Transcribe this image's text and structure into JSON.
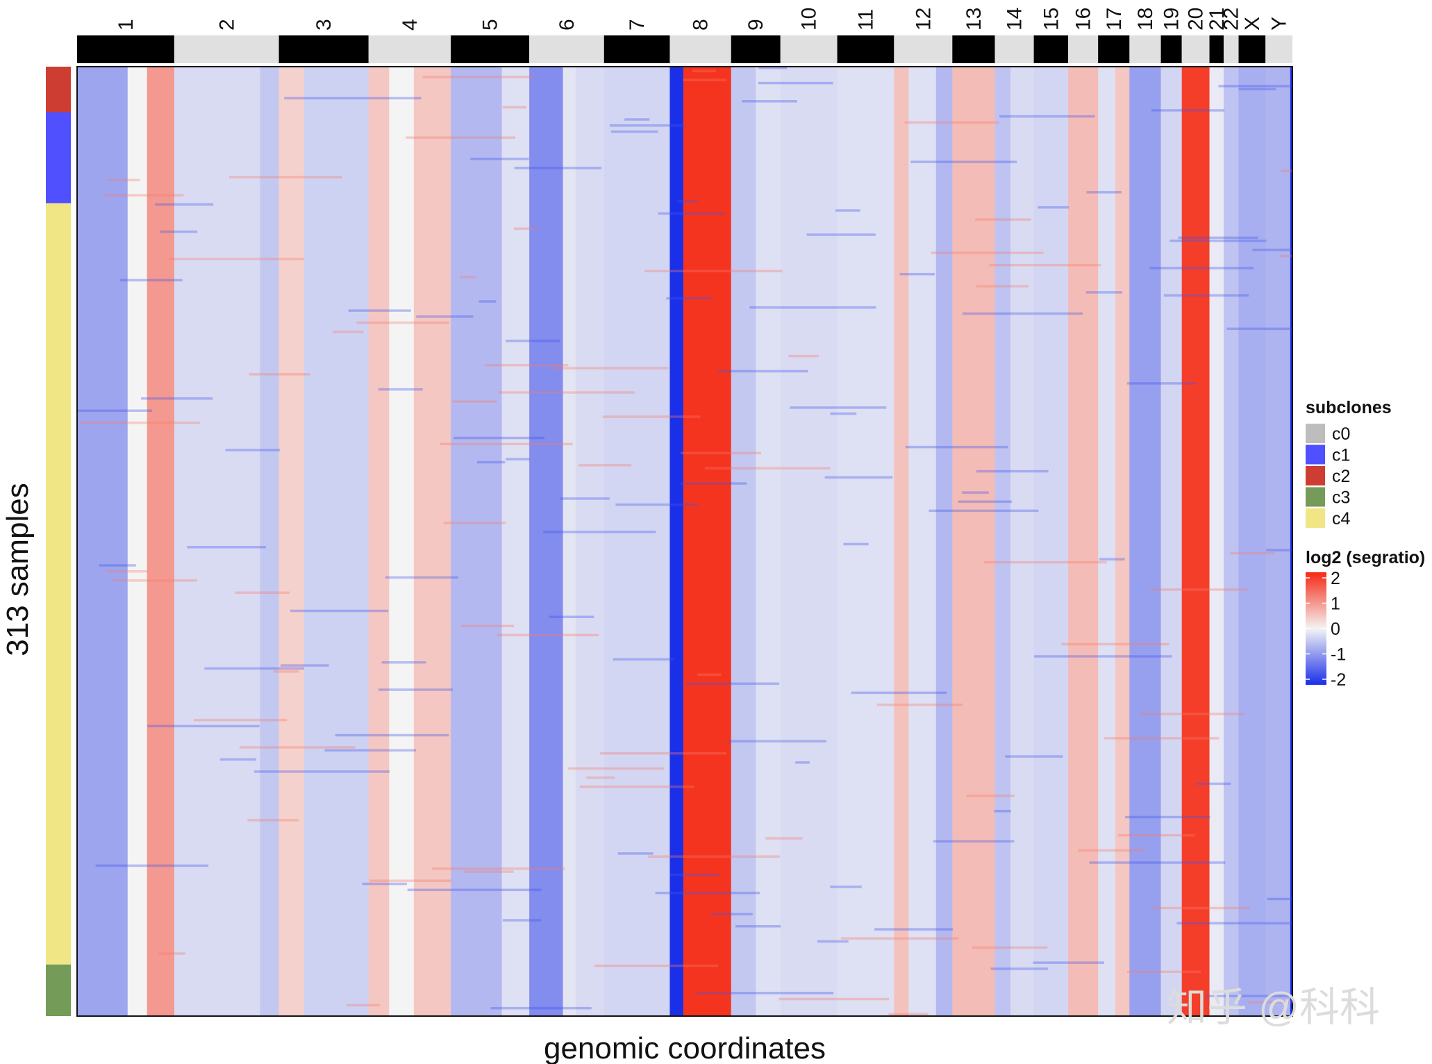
{
  "chart_data": {
    "type": "heatmap",
    "xlabel": "genomic coordinates",
    "ylabel": "313 samples",
    "n_samples": 313,
    "chromosomes": [
      {
        "name": "1",
        "w": 130
      },
      {
        "name": "2",
        "w": 140
      },
      {
        "name": "3",
        "w": 120
      },
      {
        "name": "4",
        "w": 110
      },
      {
        "name": "5",
        "w": 105
      },
      {
        "name": "6",
        "w": 100
      },
      {
        "name": "7",
        "w": 88
      },
      {
        "name": "8",
        "w": 82
      },
      {
        "name": "9",
        "w": 66
      },
      {
        "name": "10",
        "w": 76
      },
      {
        "name": "11",
        "w": 76
      },
      {
        "name": "12",
        "w": 78
      },
      {
        "name": "13",
        "w": 57
      },
      {
        "name": "14",
        "w": 52
      },
      {
        "name": "15",
        "w": 46
      },
      {
        "name": "16",
        "w": 40
      },
      {
        "name": "17",
        "w": 42
      },
      {
        "name": "18",
        "w": 42
      },
      {
        "name": "19",
        "w": 28
      },
      {
        "name": "20",
        "w": 37
      },
      {
        "name": "21",
        "w": 19
      },
      {
        "name": "22",
        "w": 20
      },
      {
        "name": "X",
        "w": 36
      },
      {
        "name": "Y",
        "w": 36
      }
    ],
    "subclone_tracks": [
      {
        "clone": "c2",
        "from_row": 0,
        "to_row": 15
      },
      {
        "clone": "c1",
        "from_row": 15,
        "to_row": 45
      },
      {
        "clone": "c4",
        "from_row": 45,
        "to_row": 296
      },
      {
        "clone": "c3",
        "from_row": 296,
        "to_row": 313
      }
    ],
    "bands_log2": [
      {
        "chrom": "1",
        "from": 0.0,
        "to": 0.52,
        "value": -0.8
      },
      {
        "chrom": "1",
        "from": 0.52,
        "to": 0.72,
        "value": 0.0
      },
      {
        "chrom": "1",
        "from": 0.72,
        "to": 1.0,
        "value": 0.9
      },
      {
        "chrom": "2",
        "from": 0.0,
        "to": 0.82,
        "value": -0.25
      },
      {
        "chrom": "2",
        "from": 0.82,
        "to": 1.0,
        "value": -0.45
      },
      {
        "chrom": "3",
        "from": 0.0,
        "to": 0.28,
        "value": 0.35
      },
      {
        "chrom": "3",
        "from": 0.28,
        "to": 1.0,
        "value": -0.35
      },
      {
        "chrom": "4",
        "from": 0.0,
        "to": 0.25,
        "value": 0.45
      },
      {
        "chrom": "4",
        "from": 0.25,
        "to": 0.55,
        "value": 0.0
      },
      {
        "chrom": "4",
        "from": 0.55,
        "to": 1.0,
        "value": 0.45
      },
      {
        "chrom": "5",
        "from": 0.0,
        "to": 0.65,
        "value": -0.6
      },
      {
        "chrom": "5",
        "from": 0.65,
        "to": 1.0,
        "value": -0.2
      },
      {
        "chrom": "6",
        "from": 0.0,
        "to": 0.45,
        "value": -1.05
      },
      {
        "chrom": "6",
        "from": 0.45,
        "to": 0.62,
        "value": -0.15
      },
      {
        "chrom": "6",
        "from": 0.62,
        "to": 1.0,
        "value": -0.25
      },
      {
        "chrom": "7",
        "from": 0.0,
        "to": 1.0,
        "value": -0.3
      },
      {
        "chrom": "8",
        "from": 0.0,
        "to": 0.22,
        "value": -2.0
      },
      {
        "chrom": "8",
        "from": 0.22,
        "to": 1.0,
        "value": 1.9
      },
      {
        "chrom": "9",
        "from": 0.0,
        "to": 0.5,
        "value": -0.45
      },
      {
        "chrom": "9",
        "from": 0.5,
        "to": 1.0,
        "value": -0.2
      },
      {
        "chrom": "10",
        "from": 0.0,
        "to": 1.0,
        "value": -0.25
      },
      {
        "chrom": "11",
        "from": 0.0,
        "to": 1.0,
        "value": -0.2
      },
      {
        "chrom": "12",
        "from": 0.0,
        "to": 0.25,
        "value": 0.5
      },
      {
        "chrom": "12",
        "from": 0.25,
        "to": 0.72,
        "value": -0.2
      },
      {
        "chrom": "12",
        "from": 0.72,
        "to": 1.0,
        "value": -0.6
      },
      {
        "chrom": "13",
        "from": 0.0,
        "to": 1.0,
        "value": 0.55
      },
      {
        "chrom": "14",
        "from": 0.0,
        "to": 0.4,
        "value": -0.5
      },
      {
        "chrom": "14",
        "from": 0.4,
        "to": 1.0,
        "value": -0.25
      },
      {
        "chrom": "15",
        "from": 0.0,
        "to": 1.0,
        "value": -0.3
      },
      {
        "chrom": "16",
        "from": 0.0,
        "to": 1.0,
        "value": 0.55
      },
      {
        "chrom": "17",
        "from": 0.0,
        "to": 0.55,
        "value": -0.2
      },
      {
        "chrom": "17",
        "from": 0.55,
        "to": 1.0,
        "value": 0.45
      },
      {
        "chrom": "18",
        "from": 0.0,
        "to": 1.0,
        "value": -0.85
      },
      {
        "chrom": "19",
        "from": 0.0,
        "to": 1.0,
        "value": -0.3
      },
      {
        "chrom": "20",
        "from": 0.0,
        "to": 1.0,
        "value": 1.8
      },
      {
        "chrom": "21",
        "from": 0.0,
        "to": 1.0,
        "value": -0.1
      },
      {
        "chrom": "22",
        "from": 0.0,
        "to": 1.0,
        "value": -0.5
      },
      {
        "chrom": "X",
        "from": 0.0,
        "to": 1.0,
        "value": -0.7
      },
      {
        "chrom": "Y",
        "from": 0.0,
        "to": 0.92,
        "value": -0.65
      },
      {
        "chrom": "Y",
        "from": 0.92,
        "to": 1.0,
        "value": -2.0
      }
    ],
    "legend": {
      "placement": "right",
      "subclones_title": "subclones",
      "subclones": [
        {
          "label": "c0",
          "color": "#bdbdbd"
        },
        {
          "label": "c1",
          "color": "#5050ff"
        },
        {
          "label": "c2",
          "color": "#ce3d32"
        },
        {
          "label": "c3",
          "color": "#749b58"
        },
        {
          "label": "c4",
          "color": "#f0e685"
        }
      ],
      "scale_title": "log2 (segratio)",
      "scale_ticks": [
        "2",
        "1",
        "0",
        "-1",
        "-2"
      ],
      "scale_range": [
        -2,
        2
      ],
      "scale_colors": {
        "low": "#1a2fe8",
        "mid": "#f4f4f4",
        "high": "#f52a14"
      }
    }
  },
  "watermark": "知乎 @科科"
}
